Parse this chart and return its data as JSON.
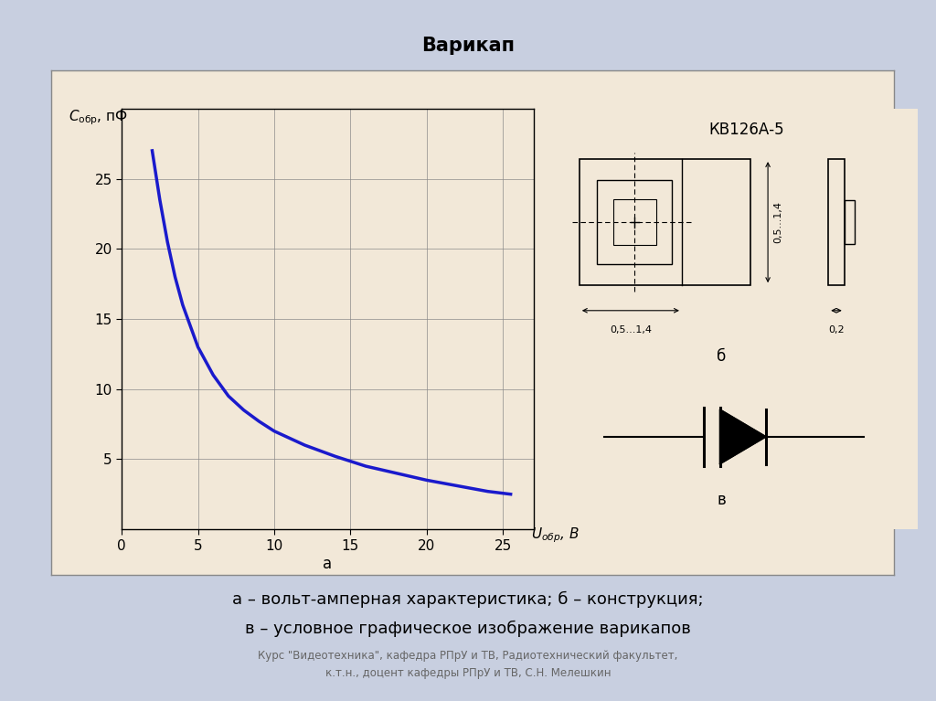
{
  "title": "Варикап",
  "title_fontsize": 15,
  "bg_color": "#c8cfe0",
  "panel_bg": "#f2e8d8",
  "curve_color": "#1a1acc",
  "curve_linewidth": 2.5,
  "x_data": [
    2.0,
    2.5,
    3.0,
    3.5,
    4.0,
    5.0,
    6.0,
    7.0,
    8.0,
    9.0,
    10.0,
    12.0,
    14.0,
    16.0,
    18.0,
    20.0,
    22.0,
    24.0,
    25.5
  ],
  "y_data": [
    27.0,
    23.5,
    20.5,
    18.0,
    16.0,
    13.0,
    11.0,
    9.5,
    8.5,
    7.7,
    7.0,
    6.0,
    5.2,
    4.5,
    4.0,
    3.5,
    3.1,
    2.7,
    2.5
  ],
  "xlim": [
    0,
    27
  ],
  "ylim": [
    0,
    30
  ],
  "xticks": [
    0,
    5,
    10,
    15,
    20,
    25
  ],
  "yticks": [
    5,
    10,
    15,
    20,
    25
  ],
  "model_label": "КВ126А-5",
  "caption_line1": "а – вольт-амперная характеристика; б – конструкция;",
  "caption_line2": "в – условное графическое изображение варикапов",
  "footer_line1": "Курс \"Видеотехника\", кафедра РПрУ и ТВ, Радиотехнический факультет,",
  "footer_line2": "к.т.н., доцент кафедры РПрУ и ТВ, С.Н. Мелешкин"
}
